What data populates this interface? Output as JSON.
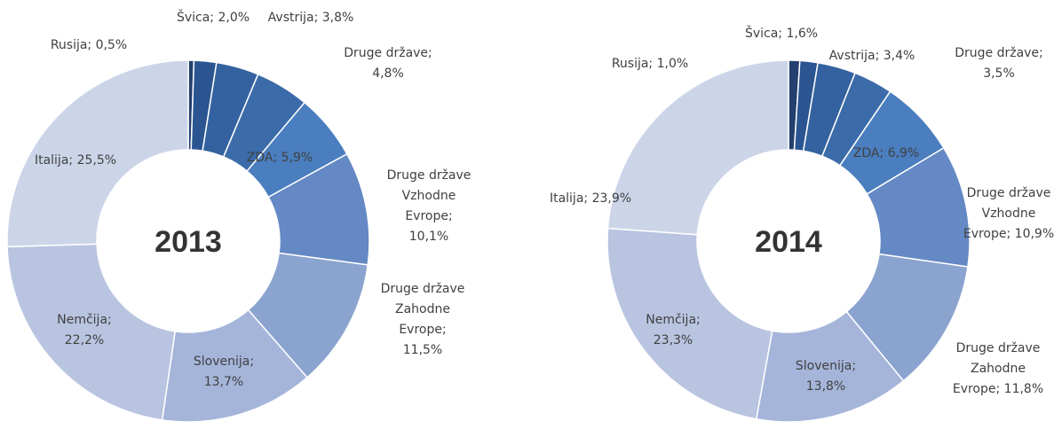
{
  "chart_data": [
    {
      "type": "donut",
      "title": "2013",
      "values": [
        0.5,
        2.0,
        3.8,
        4.8,
        5.9,
        10.1,
        11.5,
        13.7,
        22.2,
        25.5
      ],
      "value_labels": [
        "Rusija; 0,5%",
        "Švica; 2,0%",
        "Avstrija; 3,8%",
        "Druge države;\n4,8%",
        "ZDA; 5,9%",
        "Druge države\nVzhodne\nEvrope;\n10,1%",
        "Druge države\nZahodne\nEvrope;\n11,5%",
        "Slovenija;\n13,7%",
        "Nemčija;\n22,2%",
        "Italija; 25,5%"
      ],
      "colors": [
        "#23406e",
        "#2b5591",
        "#3462a0",
        "#3b6ba9",
        "#4a7ebf",
        "#6489c4",
        "#8aa3cf",
        "#a5b5da",
        "#b8c4e0",
        "#ccd5e8"
      ]
    },
    {
      "type": "donut",
      "title": "2014",
      "values": [
        1.0,
        1.6,
        3.4,
        3.5,
        6.9,
        10.9,
        11.8,
        13.8,
        23.3,
        23.9
      ],
      "value_labels": [
        "Rusija; 1,0%",
        "Švica; 1,6%",
        "Avstrija; 3,4%",
        "Druge države;\n3,5%",
        "ZDA; 6,9%",
        "Druge države\nVzhodne\nEvrope; 10,9%",
        "Druge države\nZahodne\nEvrope; 11,8%",
        "Slovenija;\n13,8%",
        "Nemčija;\n23,3%",
        "Italija; 23,9%"
      ],
      "colors": [
        "#23406e",
        "#2b5591",
        "#3462a0",
        "#3b6ba9",
        "#4a7ebf",
        "#6489c4",
        "#8aa3cf",
        "#a5b5da",
        "#b8c4e0",
        "#ccd5e8"
      ]
    }
  ]
}
